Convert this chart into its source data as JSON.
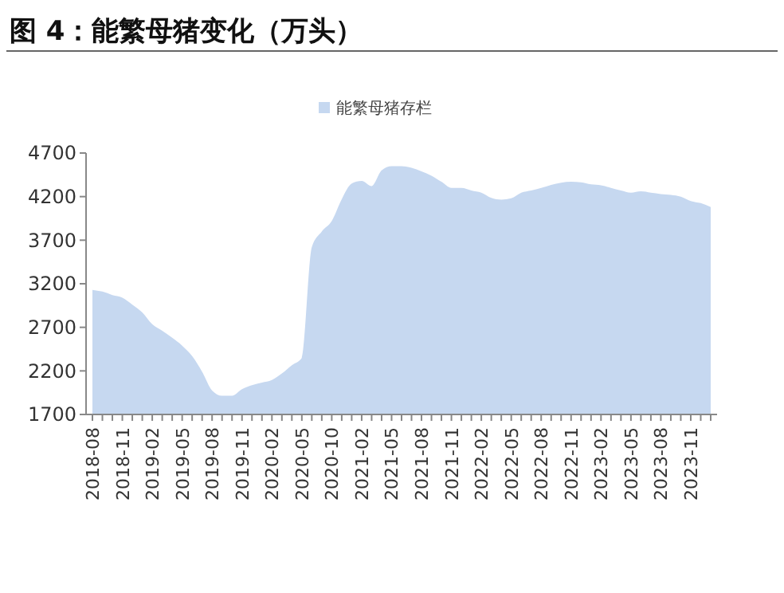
{
  "chart_data": {
    "type": "area",
    "title": "图 4：能繁母猪变化（万头）",
    "categories": [
      "2018-08",
      null,
      null,
      "2018-11",
      null,
      null,
      "2019-02",
      null,
      null,
      "2019-05",
      null,
      null,
      "2019-08",
      null,
      null,
      "2019-11",
      null,
      null,
      "2020-02",
      null,
      null,
      "2020-05",
      null,
      null,
      "2020-10",
      null,
      null,
      "2021-02",
      null,
      null,
      "2021-05",
      null,
      null,
      "2021-08",
      null,
      null,
      "2021-11",
      null,
      null,
      "2022-02",
      null,
      null,
      "2022-05",
      null,
      null,
      "2022-08",
      null,
      null,
      "2022-11",
      null,
      null,
      "2023-02",
      null,
      null,
      "2023-05",
      null,
      null,
      "2023-08",
      null,
      null,
      "2023-11",
      null,
      null
    ],
    "series": [
      {
        "name": "能繁母猪存栏",
        "color": "#c6d8f0",
        "values": [
          3130,
          3110,
          3070,
          3040,
          2960,
          2870,
          2735,
          2660,
          2580,
          2490,
          2370,
          2190,
          1975,
          1915,
          1915,
          1990,
          2035,
          2065,
          2095,
          2170,
          2265,
          2350,
          3620,
          3800,
          3920,
          4170,
          4350,
          4380,
          4320,
          4500,
          4550,
          4550,
          4530,
          4490,
          4440,
          4370,
          4300,
          4300,
          4270,
          4245,
          4185,
          4165,
          4180,
          4245,
          4270,
          4300,
          4335,
          4360,
          4370,
          4365,
          4340,
          4330,
          4300,
          4270,
          4245,
          4260,
          4245,
          4230,
          4220,
          4200,
          4150,
          4125,
          4080
        ]
      }
    ],
    "ylim": [
      1700,
      4700
    ],
    "yticks": [
      1700,
      2200,
      2700,
      3200,
      3700,
      4200,
      4700
    ],
    "grid": false,
    "legend": "top"
  }
}
